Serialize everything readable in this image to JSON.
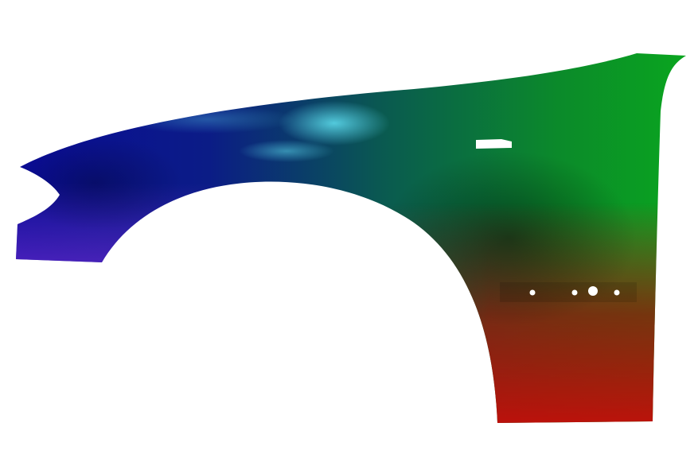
{
  "image": {
    "subject_icon": "car-fender-icon",
    "colors": {
      "background": "#ffffff",
      "left": "#0a0a9a",
      "top_right": "#0aa81e",
      "bottom_right": "#c80a0a",
      "highlight": "#5ad8ea",
      "holes": "#ffffff"
    }
  }
}
